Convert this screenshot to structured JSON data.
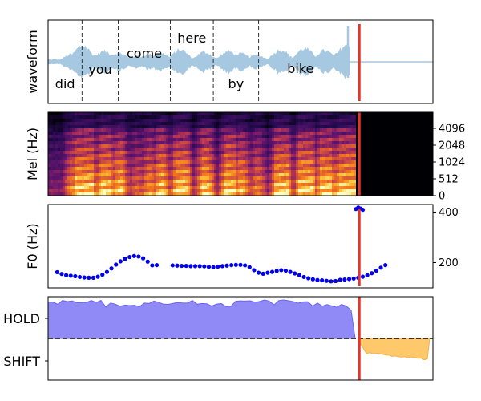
{
  "chart_data": [
    {
      "type": "area",
      "ylabel": "waveform",
      "words": [
        "did",
        "you",
        "come",
        "here",
        "by",
        "bike"
      ],
      "word_boundaries_sec": [
        0.0,
        0.3,
        0.62,
        1.08,
        1.46,
        1.86,
        2.6
      ],
      "audio_end_sec": 2.67,
      "cursor_sec": 2.75,
      "x_range_sec": [
        0.0,
        3.4
      ],
      "colors": {
        "wave": "#a6c8e0",
        "boundary": "#333333",
        "cursor": "#e8332a"
      }
    },
    {
      "type": "heatmap",
      "ylabel": "Mel (Hz)",
      "yticks": [
        "0",
        "512",
        "1024",
        "2048",
        "4096"
      ],
      "colormap": "magma"
    },
    {
      "type": "scatter",
      "ylabel": "F0 (Hz)",
      "yticks": [
        200,
        400
      ],
      "ylim": [
        100,
        430
      ],
      "series": [
        {
          "x": [
            0.08,
            0.12,
            0.16,
            0.2,
            0.24,
            0.28,
            0.32,
            0.36,
            0.4,
            0.44,
            0.48,
            0.52,
            0.56,
            0.6,
            0.64,
            0.68,
            0.72,
            0.76,
            0.8,
            0.84,
            0.88,
            0.92,
            0.96,
            1.1,
            1.14,
            1.18,
            1.22,
            1.26,
            1.3,
            1.34,
            1.38,
            1.42,
            1.46,
            1.5,
            1.54,
            1.58,
            1.62,
            1.66,
            1.7,
            1.74,
            1.78,
            1.82,
            1.86,
            1.9,
            1.94,
            1.98,
            2.02,
            2.06,
            2.1,
            2.14,
            2.18,
            2.22,
            2.26,
            2.3,
            2.34,
            2.38,
            2.42,
            2.46,
            2.5,
            2.54,
            2.58,
            2.62,
            2.66,
            2.7,
            2.74,
            2.78,
            2.82,
            2.86,
            2.9,
            2.94,
            2.98,
            2.72,
            2.74,
            2.76,
            2.78
          ],
          "y": [
            162,
            155,
            150,
            148,
            146,
            143,
            141,
            140,
            140,
            144,
            152,
            163,
            177,
            192,
            205,
            215,
            222,
            226,
            224,
            217,
            204,
            189,
            190,
            189,
            188,
            187,
            187,
            186,
            186,
            186,
            185,
            183,
            182,
            184,
            186,
            188,
            190,
            191,
            191,
            189,
            182,
            170,
            160,
            156,
            160,
            163,
            167,
            170,
            168,
            163,
            157,
            150,
            143,
            138,
            134,
            131,
            130,
            128,
            126,
            127,
            132,
            133,
            135,
            137,
            140,
            144,
            150,
            158,
            168,
            180,
            190,
            412,
            418,
            414,
            409
          ],
          "note": "placeholder"
        }
      ]
    },
    {
      "type": "area",
      "categories": [
        "HOLD",
        "SHIFT"
      ],
      "colors": {
        "hold": "#6a63f3",
        "shift": "#ffc86a",
        "threshold": "#000000",
        "cursor": "#e8332a"
      }
    }
  ]
}
